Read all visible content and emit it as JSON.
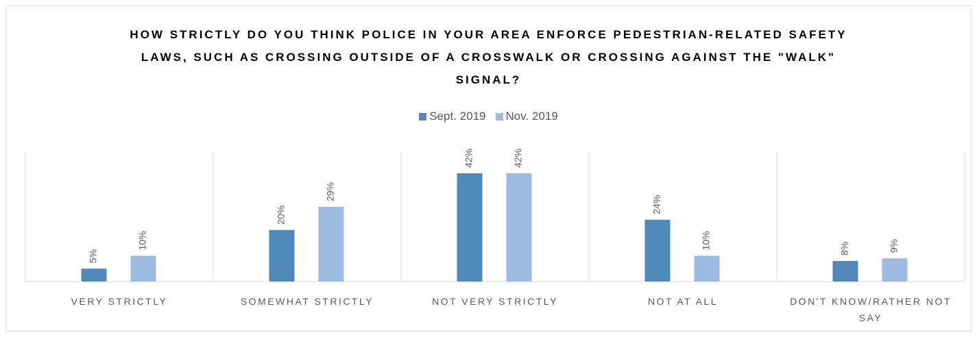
{
  "chart_data": {
    "type": "bar",
    "title": "HOW STRICTLY DO YOU THINK POLICE IN YOUR AREA ENFORCE PEDESTRIAN-RELATED SAFETY LAWS, SUCH AS CROSSING OUTSIDE OF A CROSSWALK OR CROSSING AGAINST THE \"WALK\" SIGNAL?",
    "categories": [
      "VERY STRICTLY",
      "SOMEWHAT STRICTLY",
      "NOT VERY STRICTLY",
      "NOT AT ALL",
      "DON'T KNOW/RATHER NOT SAY"
    ],
    "series": [
      {
        "name": "Sept. 2019",
        "color": "#4f88bb",
        "values": [
          5,
          20,
          42,
          24,
          8
        ],
        "value_labels": [
          "5%",
          "20%",
          "42%",
          "24%",
          "8%"
        ]
      },
      {
        "name": "Nov. 2019",
        "color": "#9dbbe0",
        "values": [
          10,
          29,
          42,
          10,
          9
        ],
        "value_labels": [
          "10%",
          "29%",
          "42%",
          "10%",
          "9%"
        ]
      }
    ],
    "legend": "top"
  }
}
